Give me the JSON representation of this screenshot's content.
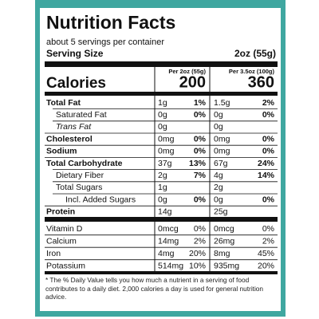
{
  "header": {
    "title": "Nutrition Facts",
    "servings": "about 5 servings per container",
    "serving_size_label": "Serving Size",
    "serving_size": "2oz (55g)"
  },
  "columns": [
    "Per 2oz (55g)",
    "Per 3.5oz (100g)"
  ],
  "calories": {
    "label": "Calories",
    "values": [
      "200",
      "360"
    ]
  },
  "rows": [
    {
      "name": "Total Fat",
      "per_serving": [
        "1g",
        "1%"
      ],
      "per_100g": [
        "1.5g",
        "2%"
      ]
    },
    {
      "name": "Saturated Fat",
      "per_serving": [
        "0g",
        "0%"
      ],
      "per_100g": [
        "0g",
        "0%"
      ]
    },
    {
      "name": "Trans Fat",
      "per_serving": [
        "0g"
      ],
      "per_100g": [
        "0g"
      ]
    },
    {
      "name": "Cholesterol",
      "per_serving": [
        "0mg",
        "0%"
      ],
      "per_100g": [
        "0mg",
        "0%"
      ]
    },
    {
      "name": "Sodium",
      "per_serving": [
        "0mg",
        "0%"
      ],
      "per_100g": [
        "0mg",
        "0%"
      ]
    },
    {
      "name": "Total Carbohydrate",
      "per_serving": [
        "37g",
        "13%"
      ],
      "per_100g": [
        "67g",
        "24%"
      ]
    },
    {
      "name": "Dietary Fiber",
      "per_serving": [
        "2g",
        "7%"
      ],
      "per_100g": [
        "4g",
        "14%"
      ]
    },
    {
      "name": "Total Sugars",
      "per_serving": [
        "1g"
      ],
      "per_100g": [
        "2g"
      ]
    },
    {
      "name": "Incl. Added Sugars",
      "per_serving": [
        "0g",
        "0%"
      ],
      "per_100g": [
        "0g",
        "0%"
      ]
    },
    {
      "name": "Protein",
      "per_serving": [
        "14g"
      ],
      "per_100g": [
        "25g"
      ]
    }
  ],
  "vitamins": [
    {
      "name": "Vitamin D",
      "per_serving": [
        "0mcg",
        "0%"
      ],
      "per_100g": [
        "0mcg",
        "0%"
      ]
    },
    {
      "name": "Calcium",
      "per_serving": [
        "14mg",
        "2%"
      ],
      "per_100g": [
        "26mg",
        "2%"
      ]
    },
    {
      "name": "Iron",
      "per_serving": [
        "4mg",
        "20%"
      ],
      "per_100g": [
        "8mg",
        "45%"
      ]
    },
    {
      "name": "Potassium",
      "per_serving": [
        "514mg",
        "10%"
      ],
      "per_100g": [
        "935mg",
        "20%"
      ]
    }
  ],
  "footnote": "* The % Daily Value tells you how much a nutrient in a serving of food contributes to a daily diet. 2,000 calories a day is used for general nutrition advice."
}
